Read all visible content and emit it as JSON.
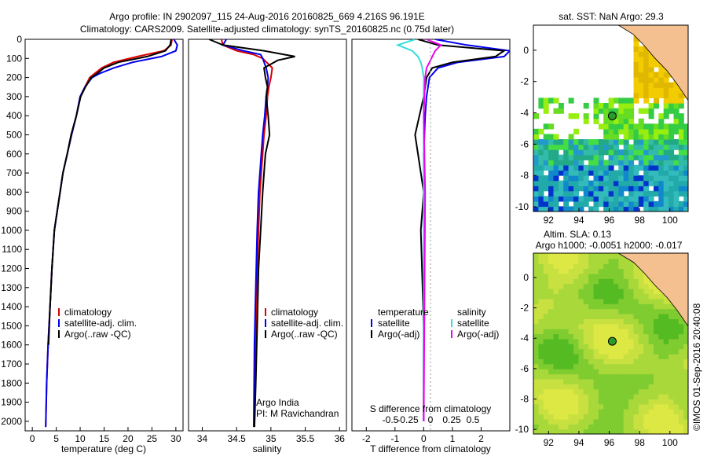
{
  "header": {
    "line1": "Argo profile: IN 2902097_115 24-Aug-2016 20160825_669 4.216S 96.191E",
    "line2": "Climatology: CARS2009. Satellite-adjusted climatology: synTS_20160825.nc (0.75d later)"
  },
  "colors": {
    "climatology": "#dd0000",
    "satellite": "#0000ee",
    "argo": "#000000",
    "satellite_s": "#33dddd",
    "argo_s": "#ee00ee",
    "land": "#f5c090"
  },
  "credit": "©IMOS 01-Sep-2016 20:40:08",
  "chart_data": [
    {
      "type": "line",
      "name": "temperature-profile",
      "xlabel": "temperature (deg C)",
      "ylabel": "",
      "xlim": [
        -1.5,
        31.5
      ],
      "ylim": [
        2050,
        0
      ],
      "xticks": [
        "0",
        "5",
        "10",
        "15",
        "20",
        "25",
        "30"
      ],
      "yticks": [
        "0",
        "100",
        "200",
        "300",
        "400",
        "500",
        "600",
        "700",
        "800",
        "900",
        "1000",
        "1100",
        "1200",
        "1300",
        "1400",
        "1500",
        "1600",
        "1700",
        "1800",
        "1900",
        "2000"
      ],
      "legend": [
        "climatology",
        "satellite-adj. clim.",
        "Argo(..raw -QC)"
      ],
      "series": [
        {
          "name": "climatology",
          "color": "#dd0000",
          "x": [
            29.2,
            29.0,
            27.5,
            22.0,
            17.0,
            14.5,
            13.0,
            12.0,
            11.0,
            10.0,
            9.2,
            8.2,
            7.3,
            6.4,
            5.8,
            5.2,
            4.6,
            4.1,
            3.7,
            3.3,
            3.0,
            2.8
          ],
          "y": [
            0,
            30,
            60,
            90,
            120,
            150,
            180,
            200,
            250,
            300,
            400,
            500,
            600,
            700,
            800,
            900,
            1000,
            1200,
            1400,
            1600,
            1800,
            2030
          ]
        },
        {
          "name": "satellite-adj. clim.",
          "color": "#0000ee",
          "x": [
            29.6,
            30.3,
            30.0,
            27.0,
            21.0,
            17.0,
            14.0,
            12.5,
            11.0,
            10.0,
            9.2,
            8.2,
            7.3,
            6.4,
            5.8,
            5.2,
            4.6,
            4.1,
            3.7,
            3.3,
            3.0,
            2.8
          ],
          "y": [
            0,
            30,
            60,
            90,
            120,
            150,
            180,
            200,
            250,
            300,
            400,
            500,
            600,
            700,
            800,
            900,
            1000,
            1200,
            1400,
            1600,
            1800,
            2030
          ]
        },
        {
          "name": "Argo(..raw -QC)",
          "color": "#000000",
          "x": [
            29.0,
            28.8,
            27.8,
            24.0,
            18.0,
            15.0,
            13.5,
            12.3,
            11.1,
            10.1,
            9.2,
            8.1,
            7.3,
            6.4,
            5.8,
            5.2,
            4.6,
            4.1,
            3.7,
            3.4
          ],
          "y": [
            0,
            30,
            60,
            90,
            120,
            150,
            180,
            200,
            250,
            300,
            400,
            500,
            600,
            700,
            800,
            900,
            1000,
            1200,
            1400,
            1600
          ]
        }
      ]
    },
    {
      "type": "line",
      "name": "salinity-profile",
      "xlabel": "salinity",
      "ylabel": "",
      "xlim": [
        33.8,
        36.1
      ],
      "ylim": [
        2050,
        0
      ],
      "xticks": [
        "34",
        "34.5",
        "35",
        "35.5",
        "36"
      ],
      "legend": [
        "climatology",
        "satellite-adj. clim.",
        "Argo(..raw -QC)"
      ],
      "annotations": [
        "Argo India",
        "PI: M Ravichandran"
      ],
      "series": [
        {
          "name": "climatology",
          "color": "#dd0000",
          "x": [
            34.28,
            34.3,
            34.5,
            34.75,
            34.88,
            35.02,
            35.0,
            34.97,
            34.95,
            34.93,
            34.9,
            34.88,
            34.86,
            34.84,
            34.82,
            34.8,
            34.78,
            34.77,
            34.76
          ],
          "y": [
            0,
            30,
            60,
            80,
            100,
            150,
            200,
            250,
            300,
            400,
            500,
            600,
            700,
            800,
            1000,
            1200,
            1500,
            1800,
            2030
          ]
        },
        {
          "name": "satellite-adj. clim.",
          "color": "#0000ee",
          "x": [
            34.35,
            34.3,
            34.6,
            34.85,
            34.88,
            34.93,
            34.96,
            34.95,
            34.93,
            34.91,
            34.88,
            34.86,
            34.84,
            34.82,
            34.8,
            34.78,
            34.76,
            34.75
          ],
          "y": [
            0,
            30,
            60,
            80,
            100,
            150,
            200,
            250,
            300,
            400,
            500,
            600,
            700,
            800,
            1000,
            1300,
            1600,
            2030
          ]
        },
        {
          "name": "Argo(..raw -QC)",
          "color": "#000000",
          "x": [
            34.1,
            34.3,
            34.9,
            35.35,
            35.1,
            34.9,
            34.92,
            34.95,
            34.93,
            34.96,
            34.98,
            34.92,
            34.9,
            34.88,
            34.85,
            34.82,
            34.8,
            34.78,
            34.76
          ],
          "y": [
            0,
            30,
            60,
            90,
            110,
            150,
            200,
            250,
            300,
            400,
            500,
            600,
            700,
            800,
            1000,
            1200,
            1500,
            1800,
            2030
          ]
        }
      ]
    },
    {
      "type": "line",
      "name": "difference-profile",
      "xlabel": "T difference from climatology",
      "xlabel2": "S difference from climatology",
      "xlim": [
        -2.5,
        3.0
      ],
      "ylim": [
        2050,
        0
      ],
      "xticks": [
        "-2",
        "-1",
        "0",
        "1",
        "2"
      ],
      "xticks2": [
        "-0.5",
        "-0.25",
        "0",
        "0.25",
        "0.5"
      ],
      "legend_t": [
        "temperature",
        "satellite",
        "Argo(-adj)"
      ],
      "legend_s": [
        "salinity",
        "satellite",
        "Argo(-adj)"
      ],
      "series": [
        {
          "name": "satellite",
          "color": "#0000ee",
          "x": [
            0.4,
            1.5,
            3.0,
            2.8,
            1.2,
            0.5,
            0.2,
            0.1,
            0.05,
            0.0,
            0.0,
            0.0,
            0.0,
            0.0
          ],
          "y": [
            0,
            30,
            60,
            90,
            120,
            150,
            200,
            300,
            400,
            600,
            800,
            1000,
            1500,
            2000
          ]
        },
        {
          "name": "Argo(-adj)",
          "color": "#000000",
          "x": [
            -0.2,
            0.5,
            2.8,
            2.5,
            1.0,
            0.3,
            0.1,
            0.0,
            -0.3,
            -0.2,
            0.0,
            -0.1,
            0.0,
            0.0
          ],
          "y": [
            0,
            30,
            60,
            90,
            120,
            150,
            200,
            300,
            500,
            600,
            800,
            1000,
            1500,
            2000
          ]
        },
        {
          "name": "satellite",
          "color": "#33dddd",
          "x": [
            -0.3,
            -0.9,
            -0.4,
            -0.2,
            -0.1,
            -0.05,
            0.0,
            0.0,
            0.0,
            0.0
          ],
          "y": [
            0,
            30,
            60,
            90,
            120,
            150,
            200,
            400,
            800,
            2000
          ]
        },
        {
          "name": "Argo(-adj)",
          "color": "#ee00ee",
          "x": [
            0.1,
            0.6,
            0.4,
            0.3,
            0.2,
            0.1,
            0.05,
            0.0,
            0.05,
            0.0
          ],
          "y": [
            0,
            30,
            60,
            90,
            120,
            150,
            200,
            400,
            800,
            2000
          ]
        }
      ]
    },
    {
      "type": "heatmap",
      "name": "sst-map",
      "title": "sat. SST: NaN Argo: 29.3",
      "xlim": [
        91,
        101.2
      ],
      "ylim": [
        -10.3,
        1.6
      ],
      "xticks": [
        "92",
        "94",
        "96",
        "98",
        "100"
      ],
      "yticks": [
        "0",
        "-2",
        "-4",
        "-6",
        "-8",
        "-10"
      ],
      "marker": {
        "lon": 96.2,
        "lat": -4.2
      }
    },
    {
      "type": "heatmap",
      "name": "sla-map",
      "title": "Altim. SLA: 0.13",
      "subtitle": "Argo h1000: -0.0051 h2000: -0.017",
      "xlim": [
        91,
        101.2
      ],
      "ylim": [
        -10.3,
        1.6
      ],
      "xticks": [
        "92",
        "94",
        "96",
        "98",
        "100"
      ],
      "yticks": [
        "0",
        "-2",
        "-4",
        "-6",
        "-8",
        "-10"
      ],
      "marker": {
        "lon": 96.2,
        "lat": -4.2
      }
    }
  ]
}
